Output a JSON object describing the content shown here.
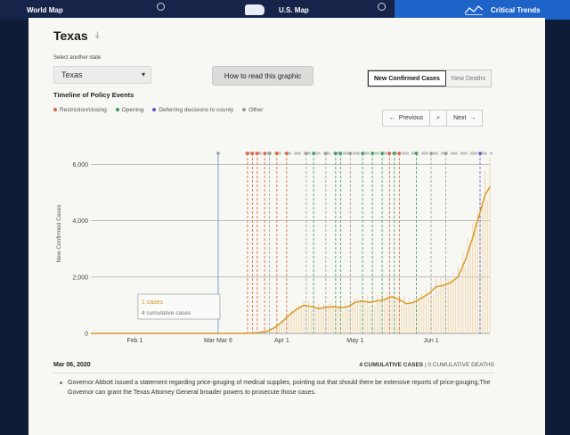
{
  "nav": {
    "world_label": "World Map",
    "us_label": "U.S. Map",
    "trends_label": "Critical Trends"
  },
  "page": {
    "title": "Texas",
    "select_label": "Select another state",
    "selected_state": "Texas",
    "how_to_read": "How to read this graphic",
    "toggle_cases": "New Confirmed Cases",
    "toggle_deaths": "New Deaths",
    "timeline_heading": "Timeline of Policy Events"
  },
  "legend": [
    {
      "label": "Restriction/closing",
      "color": "#d9603b"
    },
    {
      "label": "Opening",
      "color": "#3a9a5a"
    },
    {
      "label": "Deferring decisions to county",
      "color": "#5b55d6"
    },
    {
      "label": "Other",
      "color": "#9a9a9a"
    }
  ],
  "pager": {
    "prev": "Previous",
    "next": "Next",
    "prev_icon": "arrow-left-icon",
    "next_icon": "arrow-right-icon",
    "search_icon": "search-icon"
  },
  "tooltip": {
    "cases": "1 cases",
    "cumulative": "4 cumulative cases"
  },
  "footer": {
    "date": "Mar 06, 2020",
    "cum_cases": "4 CUMULATIVE CASES",
    "cum_deaths": "0 CUMULATIVE DEATHS",
    "separator": "|",
    "note": "Governor Abbott issued a statement regarding price-gouging of medical supplies, pointing out that should there be extensive reports of price-gouging,The Governor can grant the Texas Attorney General broader powers to prosecute those cases."
  },
  "chart_data": {
    "type": "line",
    "ylabel": "New Confirmed Cases",
    "ylim": [
      0,
      6200
    ],
    "yticks": [
      "0",
      "2,000",
      "4,000",
      "6,000"
    ],
    "ytick_values": [
      0,
      2000,
      4000,
      6000
    ],
    "xtick_labels": [
      "Feb 1",
      "Mar Mar 6",
      "Apr 1",
      "May 1",
      "Jun 1"
    ],
    "xtick_days": [
      0,
      34,
      60,
      90,
      121
    ],
    "x_range_days": [
      -18,
      145
    ],
    "selected_day": 34,
    "series": [
      {
        "line_color": "#d99a2b",
        "points": [
          [
            -18,
            0
          ],
          [
            45,
            0
          ],
          [
            50,
            20
          ],
          [
            54,
            80
          ],
          [
            57,
            200
          ],
          [
            60,
            400
          ],
          [
            63,
            650
          ],
          [
            66,
            850
          ],
          [
            69,
            1000
          ],
          [
            72,
            950
          ],
          [
            75,
            880
          ],
          [
            78,
            920
          ],
          [
            81,
            950
          ],
          [
            84,
            900
          ],
          [
            87,
            950
          ],
          [
            90,
            1100
          ],
          [
            93,
            1150
          ],
          [
            96,
            1100
          ],
          [
            99,
            1150
          ],
          [
            102,
            1200
          ],
          [
            105,
            1300
          ],
          [
            108,
            1200
          ],
          [
            111,
            1050
          ],
          [
            114,
            1100
          ],
          [
            117,
            1250
          ],
          [
            120,
            1400
          ],
          [
            123,
            1650
          ],
          [
            126,
            1700
          ],
          [
            129,
            1800
          ],
          [
            132,
            2000
          ],
          [
            135,
            2600
          ],
          [
            138,
            3400
          ],
          [
            141,
            4300
          ],
          [
            143,
            4900
          ],
          [
            145,
            5200
          ]
        ]
      }
    ],
    "events": [
      {
        "day": 34,
        "kind": "other"
      },
      {
        "day": 46,
        "kind": "restriction"
      },
      {
        "day": 48,
        "kind": "restriction"
      },
      {
        "day": 50,
        "kind": "restriction"
      },
      {
        "day": 53,
        "kind": "restriction"
      },
      {
        "day": 55,
        "kind": "other"
      },
      {
        "day": 58,
        "kind": "restriction"
      },
      {
        "day": 62,
        "kind": "restriction"
      },
      {
        "day": 70,
        "kind": "other"
      },
      {
        "day": 73,
        "kind": "opening"
      },
      {
        "day": 78,
        "kind": "other"
      },
      {
        "day": 82,
        "kind": "opening"
      },
      {
        "day": 84,
        "kind": "opening"
      },
      {
        "day": 88,
        "kind": "other"
      },
      {
        "day": 93,
        "kind": "opening"
      },
      {
        "day": 97,
        "kind": "opening"
      },
      {
        "day": 101,
        "kind": "opening"
      },
      {
        "day": 104,
        "kind": "restriction"
      },
      {
        "day": 106,
        "kind": "opening"
      },
      {
        "day": 108,
        "kind": "restriction"
      },
      {
        "day": 115,
        "kind": "opening"
      },
      {
        "day": 121,
        "kind": "other"
      },
      {
        "day": 127,
        "kind": "other"
      },
      {
        "day": 141,
        "kind": "county"
      }
    ]
  }
}
